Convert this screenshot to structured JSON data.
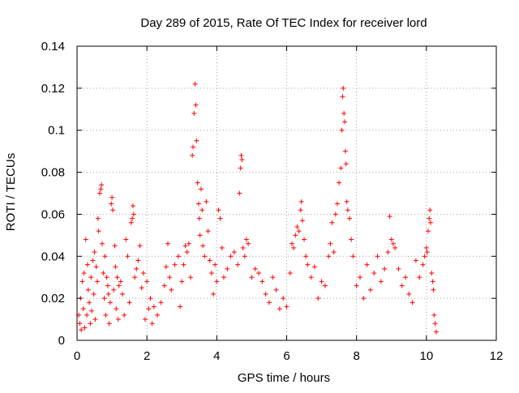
{
  "chart_data": {
    "type": "scatter",
    "title": "Day 289 of 2015, Rate Of TEC Index for receiver lord",
    "xlabel": "GPS time / hours",
    "ylabel": "ROTI / TECUs",
    "xlim": [
      0,
      12
    ],
    "ylim": [
      0,
      0.14
    ],
    "xticks": [
      0,
      2,
      4,
      6,
      8,
      10,
      12
    ],
    "xtick_labels": [
      "0",
      "2",
      "4",
      "6",
      "8",
      "10",
      "12"
    ],
    "yticks": [
      0,
      0.02,
      0.04,
      0.06,
      0.08,
      0.1,
      0.12,
      0.14
    ],
    "ytick_labels": [
      "0",
      "0.02",
      "0.04",
      "0.06",
      "0.08",
      "0.1",
      "0.12",
      "0.14"
    ],
    "grid": true,
    "legend": "none",
    "marker": "+",
    "color": "#ff0000",
    "points": [
      [
        0.05,
        0.012
      ],
      [
        0.08,
        0.008
      ],
      [
        0.1,
        0.02
      ],
      [
        0.12,
        0.005
      ],
      [
        0.15,
        0.028
      ],
      [
        0.18,
        0.015
      ],
      [
        0.2,
        0.032
      ],
      [
        0.22,
        0.006
      ],
      [
        0.25,
        0.048
      ],
      [
        0.28,
        0.012
      ],
      [
        0.3,
        0.036
      ],
      [
        0.32,
        0.024
      ],
      [
        0.35,
        0.018
      ],
      [
        0.38,
        0.008
      ],
      [
        0.4,
        0.03
      ],
      [
        0.42,
        0.014
      ],
      [
        0.45,
        0.038
      ],
      [
        0.48,
        0.022
      ],
      [
        0.5,
        0.042
      ],
      [
        0.52,
        0.01
      ],
      [
        0.55,
        0.035
      ],
      [
        0.58,
        0.028
      ],
      [
        0.6,
        0.058
      ],
      [
        0.62,
        0.052
      ],
      [
        0.65,
        0.07
      ],
      [
        0.68,
        0.072
      ],
      [
        0.7,
        0.074
      ],
      [
        0.72,
        0.046
      ],
      [
        0.75,
        0.032
      ],
      [
        0.78,
        0.02
      ],
      [
        0.8,
        0.04
      ],
      [
        0.82,
        0.012
      ],
      [
        0.85,
        0.03
      ],
      [
        0.88,
        0.026
      ],
      [
        0.9,
        0.022
      ],
      [
        0.92,
        0.008
      ],
      [
        0.95,
        0.018
      ],
      [
        0.98,
        0.065
      ],
      [
        1.0,
        0.068
      ],
      [
        1.02,
        0.062
      ],
      [
        1.05,
        0.024
      ],
      [
        1.08,
        0.045
      ],
      [
        1.1,
        0.035
      ],
      [
        1.12,
        0.015
      ],
      [
        1.15,
        0.03
      ],
      [
        1.18,
        0.01
      ],
      [
        1.2,
        0.026
      ],
      [
        1.25,
        0.028
      ],
      [
        1.3,
        0.022
      ],
      [
        1.35,
        0.012
      ],
      [
        1.4,
        0.048
      ],
      [
        1.45,
        0.04
      ],
      [
        1.5,
        0.018
      ],
      [
        1.55,
        0.056
      ],
      [
        1.58,
        0.058
      ],
      [
        1.6,
        0.064
      ],
      [
        1.62,
        0.06
      ],
      [
        1.65,
        0.03
      ],
      [
        1.7,
        0.034
      ],
      [
        1.75,
        0.038
      ],
      [
        1.8,
        0.045
      ],
      [
        1.85,
        0.025
      ],
      [
        1.9,
        0.032
      ],
      [
        1.95,
        0.01
      ],
      [
        2.0,
        0.028
      ],
      [
        2.05,
        0.015
      ],
      [
        2.1,
        0.02
      ],
      [
        2.15,
        0.008
      ],
      [
        2.2,
        0.016
      ],
      [
        2.3,
        0.012
      ],
      [
        2.4,
        0.018
      ],
      [
        2.5,
        0.026
      ],
      [
        2.55,
        0.035
      ],
      [
        2.6,
        0.046
      ],
      [
        2.65,
        0.03
      ],
      [
        2.7,
        0.024
      ],
      [
        2.8,
        0.036
      ],
      [
        2.9,
        0.04
      ],
      [
        2.95,
        0.016
      ],
      [
        3.0,
        0.028
      ],
      [
        3.05,
        0.036
      ],
      [
        3.1,
        0.045
      ],
      [
        3.15,
        0.042
      ],
      [
        3.2,
        0.046
      ],
      [
        3.25,
        0.03
      ],
      [
        3.3,
        0.088
      ],
      [
        3.32,
        0.092
      ],
      [
        3.35,
        0.108
      ],
      [
        3.38,
        0.122
      ],
      [
        3.4,
        0.112
      ],
      [
        3.42,
        0.095
      ],
      [
        3.45,
        0.075
      ],
      [
        3.48,
        0.065
      ],
      [
        3.5,
        0.058
      ],
      [
        3.52,
        0.05
      ],
      [
        3.55,
        0.072
      ],
      [
        3.58,
        0.062
      ],
      [
        3.6,
        0.045
      ],
      [
        3.65,
        0.04
      ],
      [
        3.7,
        0.066
      ],
      [
        3.75,
        0.052
      ],
      [
        3.8,
        0.038
      ],
      [
        3.85,
        0.032
      ],
      [
        3.9,
        0.022
      ],
      [
        3.95,
        0.036
      ],
      [
        4.0,
        0.028
      ],
      [
        4.05,
        0.062
      ],
      [
        4.1,
        0.058
      ],
      [
        4.15,
        0.044
      ],
      [
        4.2,
        0.03
      ],
      [
        4.3,
        0.034
      ],
      [
        4.4,
        0.04
      ],
      [
        4.5,
        0.042
      ],
      [
        4.6,
        0.036
      ],
      [
        4.65,
        0.07
      ],
      [
        4.68,
        0.082
      ],
      [
        4.7,
        0.088
      ],
      [
        4.72,
        0.086
      ],
      [
        4.75,
        0.044
      ],
      [
        4.8,
        0.04
      ],
      [
        4.85,
        0.048
      ],
      [
        4.9,
        0.046
      ],
      [
        5.0,
        0.03
      ],
      [
        5.1,
        0.034
      ],
      [
        5.2,
        0.032
      ],
      [
        5.3,
        0.028
      ],
      [
        5.4,
        0.022
      ],
      [
        5.5,
        0.018
      ],
      [
        5.6,
        0.03
      ],
      [
        5.7,
        0.024
      ],
      [
        5.8,
        0.015
      ],
      [
        5.9,
        0.02
      ],
      [
        6.0,
        0.016
      ],
      [
        6.1,
        0.032
      ],
      [
        6.15,
        0.046
      ],
      [
        6.2,
        0.044
      ],
      [
        6.25,
        0.05
      ],
      [
        6.3,
        0.054
      ],
      [
        6.35,
        0.052
      ],
      [
        6.4,
        0.062
      ],
      [
        6.42,
        0.066
      ],
      [
        6.45,
        0.057
      ],
      [
        6.5,
        0.048
      ],
      [
        6.55,
        0.04
      ],
      [
        6.6,
        0.036
      ],
      [
        6.7,
        0.03
      ],
      [
        6.8,
        0.035
      ],
      [
        6.9,
        0.02
      ],
      [
        7.0,
        0.028
      ],
      [
        7.1,
        0.026
      ],
      [
        7.2,
        0.04
      ],
      [
        7.25,
        0.046
      ],
      [
        7.3,
        0.056
      ],
      [
        7.35,
        0.042
      ],
      [
        7.4,
        0.06
      ],
      [
        7.45,
        0.065
      ],
      [
        7.5,
        0.075
      ],
      [
        7.55,
        0.082
      ],
      [
        7.58,
        0.1
      ],
      [
        7.6,
        0.116
      ],
      [
        7.62,
        0.12
      ],
      [
        7.64,
        0.108
      ],
      [
        7.66,
        0.104
      ],
      [
        7.68,
        0.09
      ],
      [
        7.7,
        0.084
      ],
      [
        7.72,
        0.066
      ],
      [
        7.75,
        0.062
      ],
      [
        7.8,
        0.058
      ],
      [
        7.85,
        0.048
      ],
      [
        7.9,
        0.04
      ],
      [
        8.0,
        0.026
      ],
      [
        8.1,
        0.03
      ],
      [
        8.2,
        0.02
      ],
      [
        8.3,
        0.036
      ],
      [
        8.4,
        0.024
      ],
      [
        8.5,
        0.032
      ],
      [
        8.6,
        0.04
      ],
      [
        8.7,
        0.028
      ],
      [
        8.8,
        0.034
      ],
      [
        8.9,
        0.042
      ],
      [
        8.95,
        0.059
      ],
      [
        9.0,
        0.048
      ],
      [
        9.05,
        0.046
      ],
      [
        9.1,
        0.044
      ],
      [
        9.2,
        0.034
      ],
      [
        9.3,
        0.026
      ],
      [
        9.4,
        0.03
      ],
      [
        9.5,
        0.022
      ],
      [
        9.6,
        0.018
      ],
      [
        9.7,
        0.038
      ],
      [
        9.8,
        0.03
      ],
      [
        9.9,
        0.036
      ],
      [
        9.95,
        0.04
      ],
      [
        10.0,
        0.044
      ],
      [
        10.02,
        0.042
      ],
      [
        10.05,
        0.052
      ],
      [
        10.08,
        0.058
      ],
      [
        10.1,
        0.062
      ],
      [
        10.12,
        0.056
      ],
      [
        10.15,
        0.032
      ],
      [
        10.18,
        0.028
      ],
      [
        10.2,
        0.024
      ],
      [
        10.22,
        0.012
      ],
      [
        10.25,
        0.008
      ],
      [
        10.28,
        0.004
      ]
    ]
  }
}
